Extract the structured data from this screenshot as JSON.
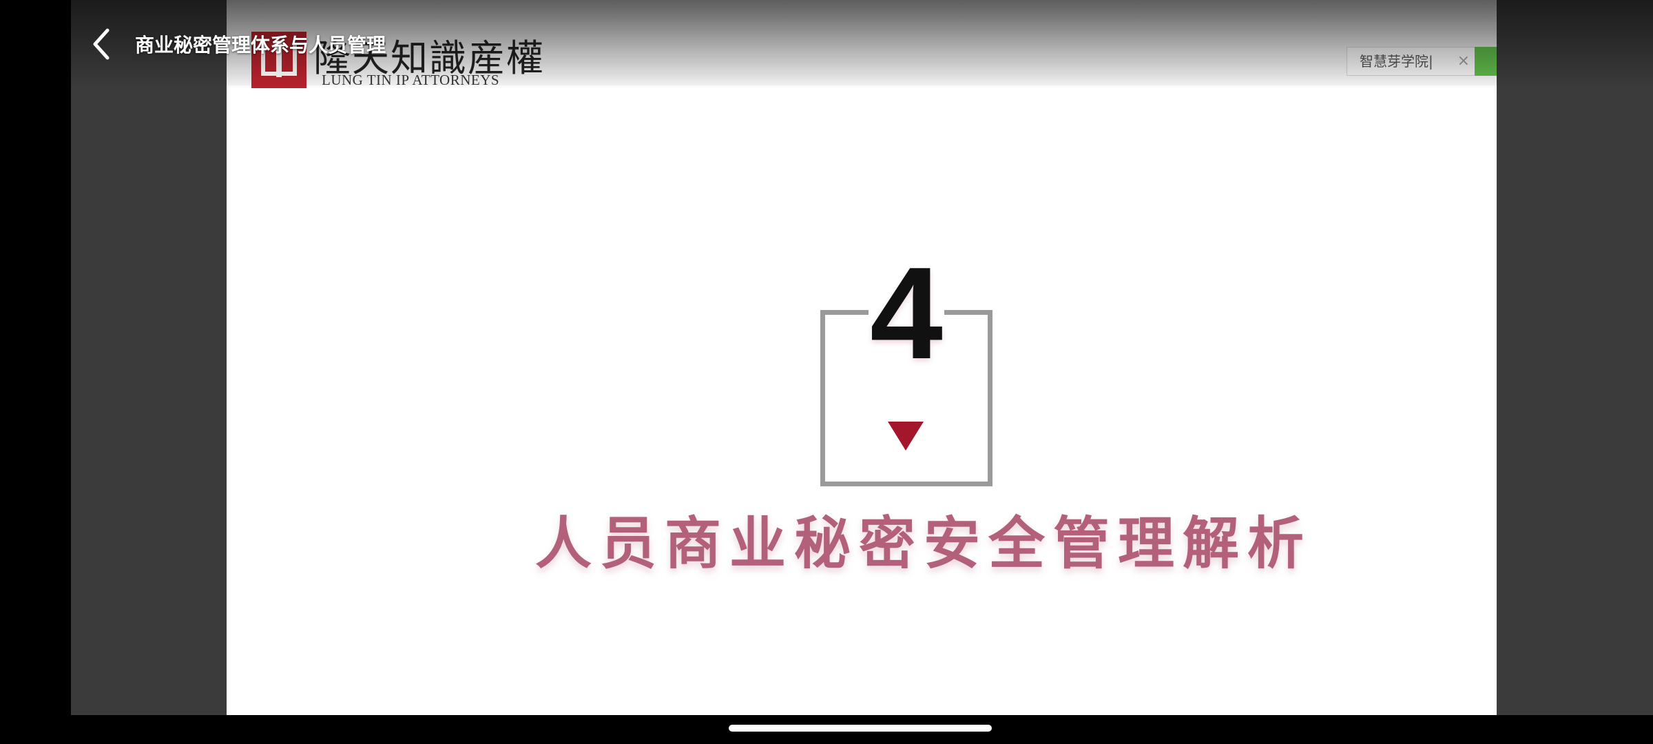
{
  "header": {
    "title": "商业秘密管理体系与人员管理",
    "back_icon": "chevron-left-icon"
  },
  "slide": {
    "logo": {
      "cn": "隆天知識産權",
      "en": "LUNG TIN IP ATTORNEYS",
      "brand_color": "#b8222c"
    },
    "browser_tab": {
      "label": "智慧芽学院|",
      "close_glyph": "×"
    },
    "chapter_number": "4",
    "section_title": "人员商业秘密安全管理解析",
    "accent_color": "#a3162b",
    "title_color": "#b3617b"
  }
}
